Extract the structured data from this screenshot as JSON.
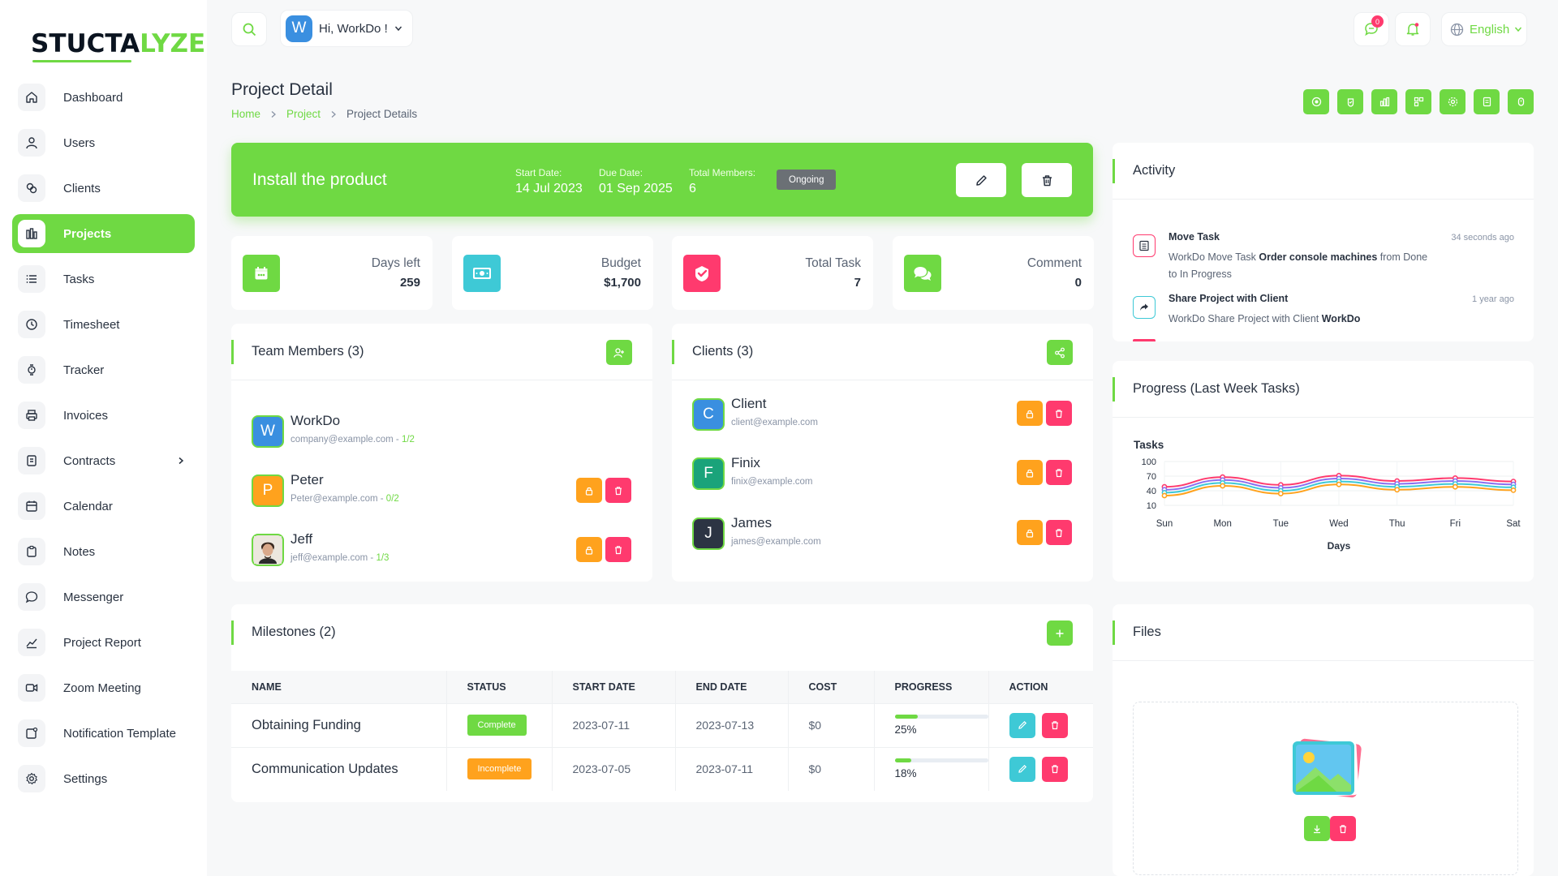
{
  "brand": {
    "logo_main": "STUCTA",
    "logo_accent": "LYZE"
  },
  "sidebar": {
    "items": [
      {
        "label": "Dashboard",
        "icon": "home-icon"
      },
      {
        "label": "Users",
        "icon": "user-icon"
      },
      {
        "label": "Clients",
        "icon": "clients-icon"
      },
      {
        "label": "Projects",
        "icon": "projects-icon",
        "active": true
      },
      {
        "label": "Tasks",
        "icon": "list-icon"
      },
      {
        "label": "Timesheet",
        "icon": "clock-icon"
      },
      {
        "label": "Tracker",
        "icon": "tracker-icon"
      },
      {
        "label": "Invoices",
        "icon": "printer-icon"
      },
      {
        "label": "Contracts",
        "icon": "contract-icon",
        "has_submenu": true
      },
      {
        "label": "Calendar",
        "icon": "calendar-icon"
      },
      {
        "label": "Notes",
        "icon": "clipboard-icon"
      },
      {
        "label": "Messenger",
        "icon": "chat-icon"
      },
      {
        "label": "Project Report",
        "icon": "report-icon"
      },
      {
        "label": "Zoom Meeting",
        "icon": "video-icon"
      },
      {
        "label": "Notification Template",
        "icon": "notification-template-icon"
      },
      {
        "label": "Settings",
        "icon": "gear-icon"
      }
    ]
  },
  "topbar": {
    "user_initial": "W",
    "greeting": "Hi, WorkDo !",
    "message_count": "0",
    "language": "English"
  },
  "page": {
    "title": "Project Detail",
    "breadcrumb": [
      "Home",
      "Project",
      "Project Details"
    ]
  },
  "project": {
    "name": "Install the product",
    "start_label": "Start Date:",
    "start_date": "14 Jul 2023",
    "due_label": "Due Date:",
    "due_date": "01 Sep 2025",
    "members_label": "Total Members:",
    "members_count": "6",
    "status": "Ongoing"
  },
  "stats": [
    {
      "label": "Days left",
      "value": "259",
      "icon": "calendar-icon",
      "color": "#6fd943"
    },
    {
      "label": "Budget",
      "value": "$1,700",
      "icon": "money-icon",
      "color": "#3ec9d6"
    },
    {
      "label": "Total Task",
      "value": "7",
      "icon": "check-icon",
      "color": "#ff3a6e"
    },
    {
      "label": "Comment",
      "value": "0",
      "icon": "comment-icon",
      "color": "#6fd943"
    }
  ],
  "team": {
    "title": "Team Members (3)",
    "members": [
      {
        "initial": "W",
        "name": "WorkDo",
        "email": "company@example.com",
        "tasks": "1/2",
        "color": "#3a8fe0"
      },
      {
        "initial": "P",
        "name": "Peter",
        "email": "Peter@example.com",
        "tasks": "0/2",
        "color": "#ffa21d"
      },
      {
        "initial": "",
        "name": "Jeff",
        "email": "jeff@example.com",
        "tasks": "1/3",
        "color": "#dcdcdc"
      }
    ]
  },
  "clients": {
    "title": "Clients (3)",
    "items": [
      {
        "initial": "C",
        "name": "Client",
        "email": "client@example.com",
        "color": "#3a8fe0"
      },
      {
        "initial": "F",
        "name": "Finix",
        "email": "finix@example.com",
        "color": "#1aa37a"
      },
      {
        "initial": "J",
        "name": "James",
        "email": "james@example.com",
        "color": "#2c3443"
      }
    ]
  },
  "milestones": {
    "title": "Milestones (2)",
    "columns": [
      "NAME",
      "STATUS",
      "START DATE",
      "END DATE",
      "COST",
      "PROGRESS",
      "ACTION"
    ],
    "rows": [
      {
        "name": "Obtaining Funding",
        "status": "Complete",
        "status_color": "#6fd943",
        "start": "2023-07-11",
        "end": "2023-07-13",
        "cost": "$0",
        "progress": "25%",
        "progress_value": 25
      },
      {
        "name": "Communication Updates",
        "status": "Incomplete",
        "status_color": "#ffa21d",
        "start": "2023-07-05",
        "end": "2023-07-11",
        "cost": "$0",
        "progress": "18%",
        "progress_value": 18
      }
    ]
  },
  "activity": {
    "title": "Activity",
    "items": [
      {
        "title": "Move Task",
        "time": "34 seconds ago",
        "desc_pre": "WorkDo Move Task ",
        "desc_bold": "Order console machines",
        "desc_post": " from Done to In Progress",
        "icon": "task-icon",
        "color": "#ff3a6e"
      },
      {
        "title": "Share Project with Client",
        "time": "1 year ago",
        "desc_pre": "WorkDo Share Project with Client ",
        "desc_bold": "WorkDo",
        "desc_post": "",
        "icon": "share-icon",
        "color": "#3ec9d6"
      }
    ]
  },
  "progress_chart": {
    "title": "Progress (Last Week Tasks)"
  },
  "chart_data": {
    "type": "line",
    "title": "Tasks",
    "xlabel": "Days",
    "ylabel": "",
    "categories": [
      "Sun",
      "Mon",
      "Tue",
      "Wed",
      "Thu",
      "Fri",
      "Sat"
    ],
    "y_ticks": [
      10,
      40,
      70,
      100
    ],
    "ylim": [
      10,
      100
    ],
    "grid": true,
    "series": [
      {
        "color": "#ff3a6e",
        "values": [
          48,
          68,
          52,
          71,
          60,
          66,
          59
        ]
      },
      {
        "color": "#8a6ff0",
        "values": [
          42,
          62,
          46,
          65,
          54,
          60,
          53
        ]
      },
      {
        "color": "#3ec9d6",
        "values": [
          36,
          56,
          40,
          59,
          48,
          54,
          47
        ]
      },
      {
        "color": "#ffa21d",
        "values": [
          30,
          50,
          34,
          53,
          42,
          48,
          41
        ]
      }
    ]
  },
  "files": {
    "title": "Files"
  }
}
